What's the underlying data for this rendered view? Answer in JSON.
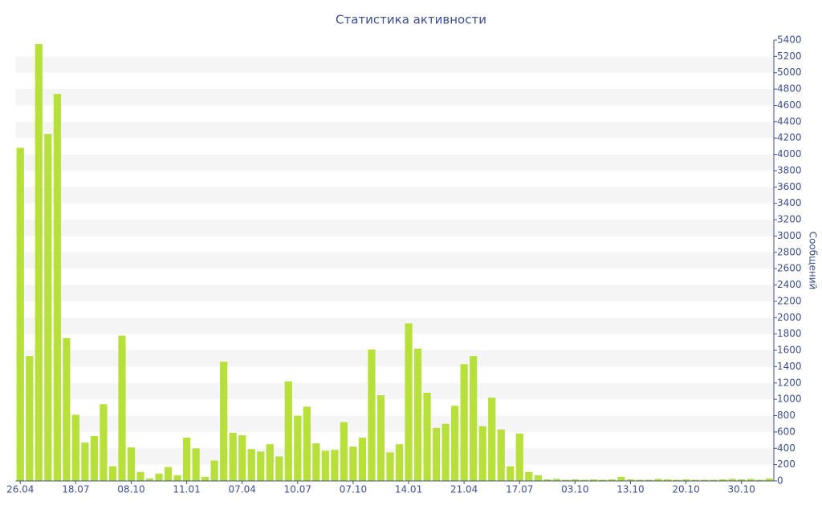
{
  "chart_data": {
    "type": "bar",
    "title": "Статистика активности",
    "y_label": "Сообщений",
    "color": "#b8e03a",
    "categories": [
      "26.04",
      null,
      null,
      null,
      null,
      null,
      "18.07",
      null,
      null,
      null,
      null,
      null,
      "08.10",
      null,
      null,
      null,
      null,
      null,
      "11.01",
      null,
      null,
      null,
      null,
      null,
      "07.04",
      null,
      null,
      null,
      null,
      null,
      "10.07",
      null,
      null,
      null,
      null,
      null,
      "07.10",
      null,
      null,
      null,
      null,
      null,
      "14.01",
      null,
      null,
      null,
      null,
      null,
      "21.04",
      null,
      null,
      null,
      null,
      null,
      "17.07",
      null,
      null,
      null,
      null,
      null,
      "03.10",
      null,
      null,
      null,
      null,
      null,
      "13.10",
      null,
      null,
      null,
      null,
      null,
      "20.10",
      null,
      null,
      null,
      null,
      null,
      "30.10",
      null,
      null,
      null
    ],
    "values": [
      4080,
      1530,
      5350,
      4250,
      4740,
      1750,
      810,
      470,
      550,
      940,
      180,
      1780,
      410,
      110,
      30,
      90,
      170,
      70,
      530,
      400,
      50,
      250,
      1460,
      590,
      560,
      390,
      360,
      450,
      300,
      1220,
      800,
      910,
      460,
      370,
      380,
      720,
      420,
      530,
      1610,
      1050,
      350,
      450,
      1930,
      1620,
      1080,
      650,
      700,
      920,
      1430,
      1530,
      670,
      1020,
      630,
      180,
      580,
      110,
      70,
      20,
      25,
      15,
      20,
      15,
      20,
      15,
      20,
      50,
      20,
      15,
      15,
      25,
      20,
      15,
      20,
      15,
      15,
      15,
      20,
      25,
      20,
      25,
      15,
      30
    ],
    "ylim": [
      0,
      5400
    ],
    "yticks": [
      0,
      200,
      400,
      600,
      800,
      1000,
      1200,
      1400,
      1600,
      1800,
      2000,
      2200,
      2400,
      2600,
      2800,
      3000,
      3200,
      3400,
      3600,
      3800,
      4000,
      4200,
      4400,
      4600,
      4800,
      5000,
      5200,
      5400
    ],
    "grid": true
  }
}
